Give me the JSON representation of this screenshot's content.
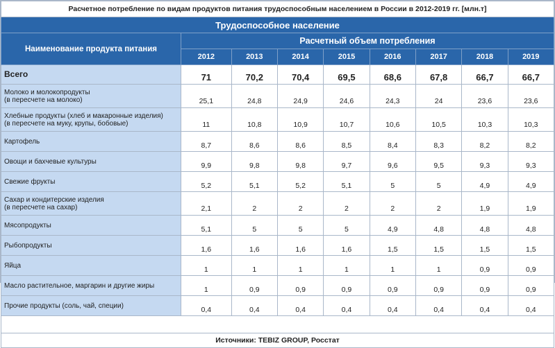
{
  "title": "Расчетное потребление по видам продуктов питания трудоспособным населением в России в 2012-2019 гг. [млн.т]",
  "group": "Трудоспособное население",
  "header": {
    "name_col": "Наименование продукта питания",
    "volume": "Расчетный объем потребления",
    "years": [
      "2012",
      "2013",
      "2014",
      "2015",
      "2016",
      "2017",
      "2018",
      "2019"
    ]
  },
  "total": {
    "name": "Всего",
    "values": [
      "71",
      "70,2",
      "70,4",
      "69,5",
      "68,6",
      "67,8",
      "66,7",
      "66,7"
    ]
  },
  "rows": [
    {
      "name1": "Молоко и молокопродукты",
      "name2": "(в пересчете на молоко)",
      "values": [
        "25,1",
        "24,8",
        "24,9",
        "24,6",
        "24,3",
        "24",
        "23,6",
        "23,6"
      ]
    },
    {
      "name1": "Хлебные продукты (хлеб и макаронные изделия)",
      "name2": "(в пересчете на муку, крупы, бобовые)",
      "values": [
        "11",
        "10,8",
        "10,9",
        "10,7",
        "10,6",
        "10,5",
        "10,3",
        "10,3"
      ]
    },
    {
      "name1": "Картофель",
      "name2": "",
      "values": [
        "8,7",
        "8,6",
        "8,6",
        "8,5",
        "8,4",
        "8,3",
        "8,2",
        "8,2"
      ]
    },
    {
      "name1": "Овощи и бахчевые культуры",
      "name2": "",
      "values": [
        "9,9",
        "9,8",
        "9,8",
        "9,7",
        "9,6",
        "9,5",
        "9,3",
        "9,3"
      ]
    },
    {
      "name1": "Свежие фрукты",
      "name2": "",
      "values": [
        "5,2",
        "5,1",
        "5,2",
        "5,1",
        "5",
        "5",
        "4,9",
        "4,9"
      ]
    },
    {
      "name1": "Сахар и кондитерские изделия",
      "name2": "(в пересчете на сахар)",
      "values": [
        "2,1",
        "2",
        "2",
        "2",
        "2",
        "2",
        "1,9",
        "1,9"
      ]
    },
    {
      "name1": "Мясопродукты",
      "name2": "",
      "values": [
        "5,1",
        "5",
        "5",
        "5",
        "4,9",
        "4,8",
        "4,8",
        "4,8"
      ]
    },
    {
      "name1": "Рыбопродукты",
      "name2": "",
      "values": [
        "1,6",
        "1,6",
        "1,6",
        "1,6",
        "1,5",
        "1,5",
        "1,5",
        "1,5"
      ]
    },
    {
      "name1": "Яйца",
      "name2": "",
      "values": [
        "1",
        "1",
        "1",
        "1",
        "1",
        "1",
        "0,9",
        "0,9"
      ]
    },
    {
      "name1": "Масло растительное, маргарин и другие жиры",
      "name2": "",
      "values": [
        "1",
        "0,9",
        "0,9",
        "0,9",
        "0,9",
        "0,9",
        "0,9",
        "0,9"
      ]
    },
    {
      "name1": "Прочие продукты (соль, чай, специи)",
      "name2": "",
      "values": [
        "0,4",
        "0,4",
        "0,4",
        "0,4",
        "0,4",
        "0,4",
        "0,4",
        "0,4"
      ]
    }
  ],
  "source": "Источники: TEBIZ GROUP, Росстат"
}
